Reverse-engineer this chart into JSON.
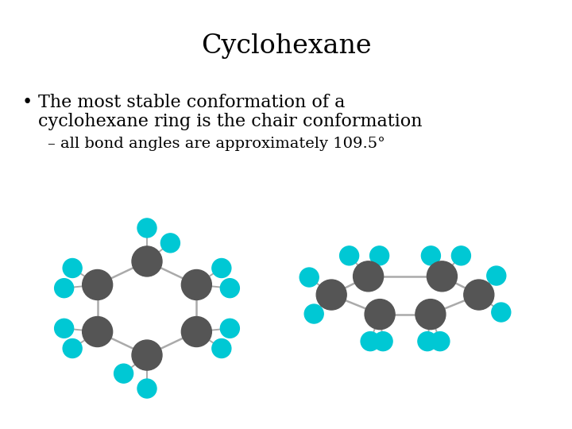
{
  "title": "Cyclohexane",
  "bullet1_line1": "The most stable conformation of a",
  "bullet1_line2": "cyclohexane ring is the chair conformation",
  "bullet2": "– all bond angles are approximately 109.5°",
  "bg_color": "#ffffff",
  "text_color": "#000000",
  "carbon_color": "#555555",
  "hydrogen_color": "#00c8d4",
  "bond_color": "#aaaaaa",
  "title_fontsize": 24,
  "body_fontsize": 16,
  "sub_fontsize": 14
}
